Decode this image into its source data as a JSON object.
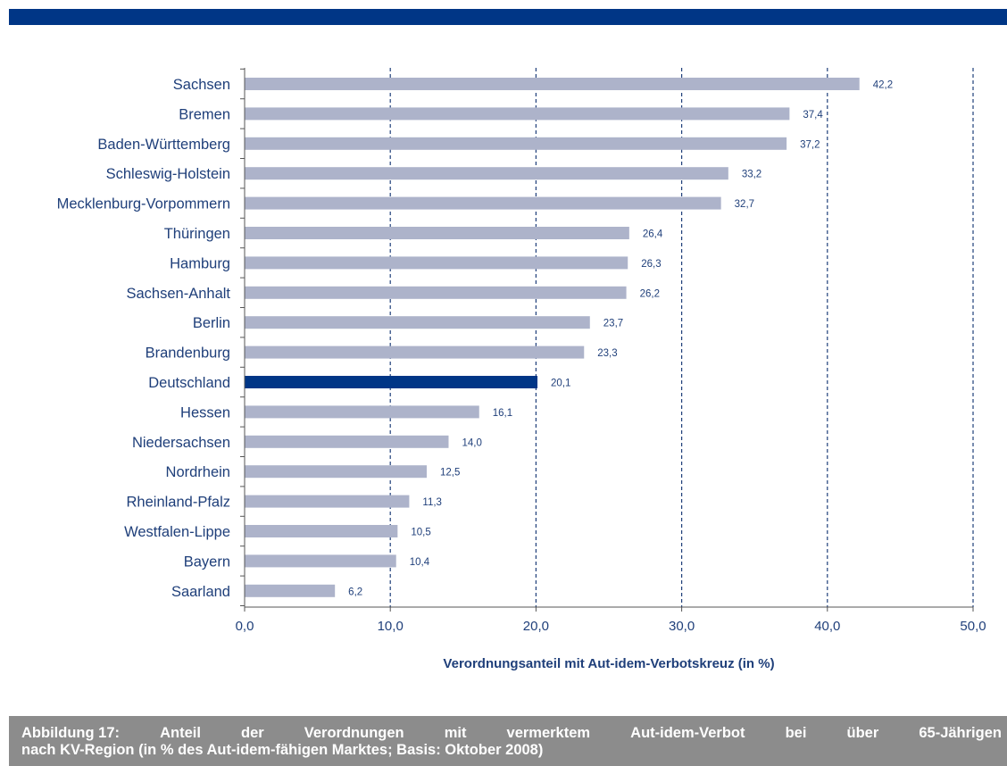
{
  "colors": {
    "bar": "#adb3ca",
    "highlight_bar": "#003686",
    "text": "#1f3f7a",
    "grid": "#1f3f7a",
    "top_bar": "#003686",
    "caption_bg": "#8c8c8c"
  },
  "caption": {
    "label": "Abbildung 17:",
    "line1": [
      "Anteil",
      "der",
      "Verordnungen",
      "mit",
      "vermerktem",
      "Aut-idem-Verbot",
      "bei",
      "über",
      "65-Jährigen"
    ],
    "line2": "nach KV-Region (in % des Aut-idem-fähigen Marktes; Basis: Oktober 2008)"
  },
  "chart_data": {
    "type": "bar",
    "orientation": "horizontal",
    "xlabel": "Verordnungsanteil mit Aut-idem-Verbotskreuz (in %)",
    "xlim": [
      0,
      50
    ],
    "xticks": [
      "0,0",
      "10,0",
      "20,0",
      "30,0",
      "40,0",
      "50,0"
    ],
    "grid": "vertical dashed",
    "highlight": "Deutschland",
    "categories": [
      "Sachsen",
      "Bremen",
      "Baden-Württemberg",
      "Schleswig-Holstein",
      "Mecklenburg-Vorpommern",
      "Thüringen",
      "Hamburg",
      "Sachsen-Anhalt",
      "Berlin",
      "Brandenburg",
      "Deutschland",
      "Hessen",
      "Niedersachsen",
      "Nordrhein",
      "Rheinland-Pfalz",
      "Westfalen-Lippe",
      "Bayern",
      "Saarland"
    ],
    "values": [
      42.2,
      37.4,
      37.2,
      33.2,
      32.7,
      26.4,
      26.3,
      26.2,
      23.7,
      23.3,
      20.1,
      16.1,
      14.0,
      12.5,
      11.3,
      10.5,
      10.4,
      6.2
    ],
    "value_labels": [
      "42,2",
      "37,4",
      "37,2",
      "33,2",
      "32,7",
      "26,4",
      "26,3",
      "26,2",
      "23,7",
      "23,3",
      "20,1",
      "16,1",
      "14,0",
      "12,5",
      "11,3",
      "10,5",
      "10,4",
      "6,2"
    ]
  }
}
